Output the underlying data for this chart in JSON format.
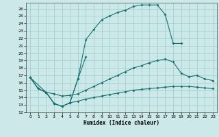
{
  "xlabel": "Humidex (Indice chaleur)",
  "bg_color": "#cce8e8",
  "grid_color": "#99cccc",
  "line_color": "#1a7070",
  "xlim": [
    -0.5,
    23.5
  ],
  "ylim": [
    12,
    26.8
  ],
  "xticks": [
    0,
    1,
    2,
    3,
    4,
    5,
    6,
    7,
    8,
    9,
    10,
    11,
    12,
    13,
    14,
    15,
    16,
    17,
    18,
    19,
    20,
    21,
    22,
    23
  ],
  "yticks": [
    12,
    13,
    14,
    15,
    16,
    17,
    18,
    19,
    20,
    21,
    22,
    23,
    24,
    25,
    26
  ],
  "line1_x": [
    0,
    1,
    2,
    3,
    4,
    5,
    6,
    7
  ],
  "line1_y": [
    16.7,
    15.2,
    14.7,
    13.2,
    12.8,
    13.3,
    16.5,
    19.5
  ],
  "line2_x": [
    0,
    2,
    3,
    4,
    5,
    6,
    7,
    8,
    9,
    10,
    11,
    12,
    13,
    14,
    15,
    16,
    17,
    18,
    19
  ],
  "line2_y": [
    16.7,
    14.7,
    13.2,
    12.8,
    13.3,
    16.5,
    21.8,
    23.2,
    24.5,
    25.0,
    25.5,
    25.8,
    26.3,
    26.5,
    26.5,
    26.5,
    25.2,
    21.3,
    21.3
  ],
  "line3_x": [
    0,
    1,
    2,
    3,
    4,
    5,
    6,
    7,
    8,
    9,
    10,
    11,
    12,
    13,
    14,
    15,
    16,
    17,
    18,
    19,
    20,
    21,
    22,
    23
  ],
  "line3_y": [
    16.7,
    15.2,
    14.7,
    14.5,
    14.2,
    14.3,
    14.5,
    15.0,
    15.5,
    16.0,
    16.5,
    17.0,
    17.5,
    18.0,
    18.3,
    18.7,
    19.0,
    19.2,
    18.8,
    17.3,
    16.8,
    17.0,
    16.5,
    16.3
  ],
  "line4_x": [
    0,
    1,
    2,
    3,
    4,
    5,
    6,
    7,
    8,
    9,
    10,
    11,
    12,
    13,
    14,
    15,
    16,
    17,
    18,
    19,
    20,
    21,
    22,
    23
  ],
  "line4_y": [
    16.7,
    15.2,
    14.7,
    13.2,
    12.8,
    13.3,
    13.5,
    13.8,
    14.0,
    14.2,
    14.4,
    14.6,
    14.8,
    15.0,
    15.1,
    15.2,
    15.3,
    15.4,
    15.5,
    15.5,
    15.5,
    15.4,
    15.3,
    15.2
  ]
}
